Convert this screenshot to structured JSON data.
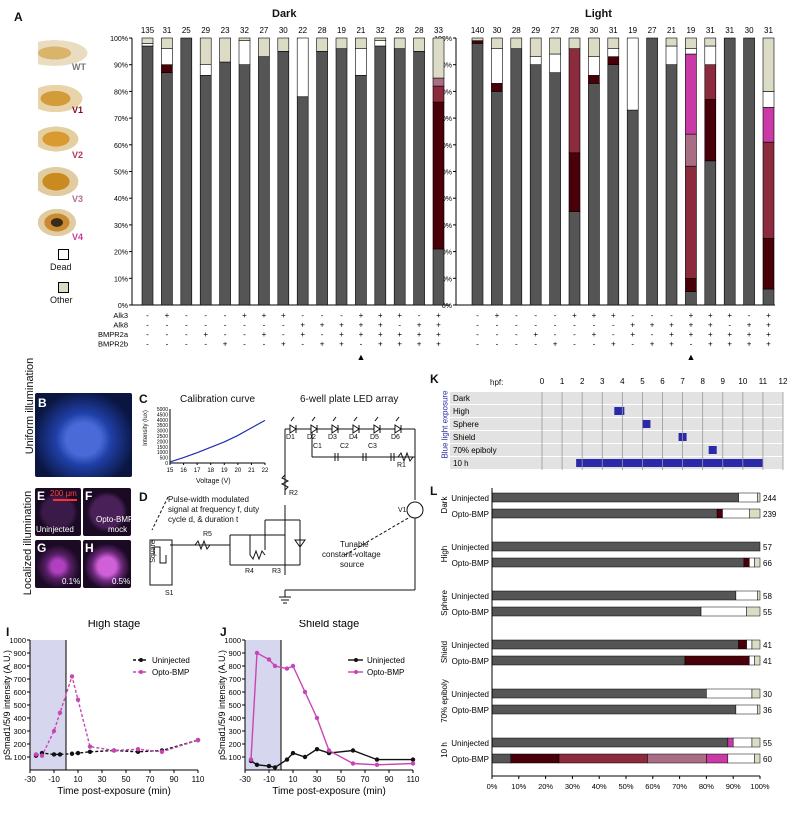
{
  "panelA": {
    "letter": "A",
    "group_titles": [
      "Dark",
      "Light"
    ],
    "y_ticks": [
      "0%",
      "10%",
      "20%",
      "30%",
      "40%",
      "50%",
      "60%",
      "70%",
      "80%",
      "90%",
      "100%"
    ],
    "phenotypes": [
      {
        "name": "WT",
        "color": "#808080"
      },
      {
        "name": "V1",
        "color": "#7a1020"
      },
      {
        "name": "V2",
        "color": "#b03a52"
      },
      {
        "name": "V3",
        "color": "#b0708a"
      },
      {
        "name": "V4",
        "color": "#cc3aa0"
      }
    ],
    "dead_label": "Dead",
    "other_label": "Other",
    "row_labels": [
      "Alk3",
      "Alk8",
      "BMPR2a",
      "BMPR2b"
    ],
    "dark": {
      "n": [
        "135",
        "31",
        "25",
        "29",
        "23",
        "32",
        "27",
        "30",
        "22",
        "28",
        "19",
        "21",
        "32",
        "28",
        "28",
        "33"
      ],
      "genotype": [
        [
          "-",
          "+",
          "-",
          "-",
          "-",
          "+",
          "+",
          "+",
          "-",
          "-",
          "-",
          "+",
          "+",
          "+",
          "-",
          "+"
        ],
        [
          "-",
          "-",
          "-",
          "-",
          "-",
          "-",
          "-",
          "-",
          "+",
          "+",
          "+",
          "+",
          "+",
          "-",
          "+",
          "+"
        ],
        [
          "-",
          "-",
          "-",
          "+",
          "-",
          "-",
          "+",
          "-",
          "+",
          "-",
          "+",
          "+",
          "+",
          "+",
          "+",
          "+"
        ],
        [
          "-",
          "-",
          "-",
          "-",
          "+",
          "-",
          "-",
          "+",
          "-",
          "+",
          "+",
          "-",
          "+",
          "+",
          "+",
          "+"
        ]
      ]
    },
    "light": {
      "n": [
        "140",
        "30",
        "28",
        "29",
        "27",
        "28",
        "30",
        "31",
        "19",
        "27",
        "21",
        "19",
        "31",
        "31",
        "30",
        "31"
      ],
      "genotype": [
        [
          "-",
          "+",
          "-",
          "-",
          "-",
          "+",
          "+",
          "+",
          "-",
          "-",
          "-",
          "+",
          "+",
          "+",
          "-",
          "+"
        ],
        [
          "-",
          "-",
          "-",
          "-",
          "-",
          "-",
          "-",
          "-",
          "+",
          "+",
          "+",
          "+",
          "+",
          "-",
          "+",
          "+"
        ],
        [
          "-",
          "-",
          "-",
          "+",
          "-",
          "-",
          "+",
          "-",
          "+",
          "-",
          "+",
          "+",
          "+",
          "+",
          "+",
          "+"
        ],
        [
          "-",
          "-",
          "-",
          "-",
          "+",
          "-",
          "-",
          "+",
          "-",
          "+",
          "+",
          "-",
          "+",
          "+",
          "+",
          "+"
        ]
      ]
    },
    "arrow": "▲"
  },
  "chart_data": [
    {
      "type": "bar",
      "stacked": true,
      "title": "Dark",
      "ylim": [
        0,
        100
      ],
      "categories": [
        "1",
        "2",
        "3",
        "4",
        "5",
        "6",
        "7",
        "8",
        "9",
        "10",
        "11",
        "12",
        "13",
        "14",
        "15",
        "16"
      ],
      "series": [
        {
          "name": "WT",
          "values": [
            97,
            87,
            100,
            86,
            91,
            90,
            93,
            95,
            78,
            95,
            96,
            86,
            97,
            96,
            95,
            21
          ]
        },
        {
          "name": "V1",
          "values": [
            0,
            3,
            0,
            0,
            0,
            0,
            0,
            0,
            0,
            0,
            0,
            0,
            0,
            0,
            0,
            55
          ]
        },
        {
          "name": "V2",
          "values": [
            0,
            0,
            0,
            0,
            0,
            0,
            0,
            0,
            0,
            0,
            0,
            0,
            0,
            0,
            0,
            6
          ]
        },
        {
          "name": "V3",
          "values": [
            0,
            0,
            0,
            0,
            0,
            0,
            0,
            0,
            0,
            0,
            0,
            0,
            0,
            0,
            0,
            3
          ]
        },
        {
          "name": "V4",
          "values": [
            0,
            0,
            0,
            0,
            0,
            0,
            0,
            0,
            0,
            0,
            0,
            0,
            0,
            0,
            0,
            0
          ]
        },
        {
          "name": "Dead",
          "values": [
            1,
            6,
            0,
            4,
            0,
            9,
            0,
            0,
            22,
            0,
            0,
            10,
            2,
            0,
            0,
            0
          ]
        },
        {
          "name": "Other",
          "values": [
            2,
            4,
            0,
            10,
            9,
            1,
            7,
            5,
            0,
            5,
            4,
            4,
            1,
            4,
            5,
            15
          ]
        }
      ]
    },
    {
      "type": "bar",
      "stacked": true,
      "title": "Light",
      "ylim": [
        0,
        100
      ],
      "categories": [
        "1",
        "2",
        "3",
        "4",
        "5",
        "6",
        "7",
        "8",
        "9",
        "10",
        "11",
        "12",
        "13",
        "14",
        "15",
        "16"
      ],
      "series": [
        {
          "name": "WT",
          "values": [
            98,
            80,
            96,
            90,
            87,
            35,
            83,
            90,
            73,
            100,
            90,
            5,
            54,
            100,
            100,
            6
          ]
        },
        {
          "name": "V1",
          "values": [
            1,
            3,
            0,
            0,
            0,
            22,
            3,
            3,
            0,
            0,
            0,
            5,
            23,
            0,
            0,
            19
          ]
        },
        {
          "name": "V2",
          "values": [
            0,
            0,
            0,
            0,
            0,
            39,
            0,
            0,
            0,
            0,
            0,
            42,
            13,
            0,
            0,
            36
          ]
        },
        {
          "name": "V3",
          "values": [
            0,
            0,
            0,
            0,
            0,
            0,
            0,
            0,
            0,
            0,
            0,
            12,
            0,
            0,
            0,
            0
          ]
        },
        {
          "name": "V4",
          "values": [
            0,
            0,
            0,
            0,
            0,
            0,
            0,
            0,
            0,
            0,
            0,
            30,
            0,
            0,
            0,
            13
          ]
        },
        {
          "name": "Dead",
          "values": [
            0,
            13,
            0,
            3,
            7,
            0,
            7,
            3,
            27,
            0,
            7,
            2,
            7,
            0,
            0,
            6
          ]
        },
        {
          "name": "Other",
          "values": [
            1,
            4,
            4,
            7,
            6,
            4,
            7,
            4,
            0,
            0,
            3,
            4,
            3,
            0,
            0,
            20
          ]
        }
      ]
    },
    {
      "type": "line",
      "title": "High stage",
      "xlabel": "Time post-exposure (min)",
      "ylabel": "pSmad1/5/9 intensity (A.U.)",
      "xlim": [
        -30,
        110
      ],
      "ylim": [
        0,
        1000
      ],
      "x_ticks": [
        "-30",
        "-10",
        "10",
        "30",
        "50",
        "70",
        "90",
        "110"
      ],
      "y_ticks": [
        "100",
        "200",
        "300",
        "400",
        "500",
        "600",
        "700",
        "800",
        "900",
        "1000"
      ],
      "series": [
        {
          "name": "Uninjected",
          "x": [
            -25,
            -20,
            -10,
            -5,
            5,
            10,
            20,
            40,
            60,
            80,
            110
          ],
          "y": [
            110,
            130,
            120,
            120,
            125,
            130,
            140,
            150,
            140,
            150,
            230
          ]
        },
        {
          "name": "Opto-BMP",
          "x": [
            -25,
            -20,
            -10,
            -5,
            5,
            10,
            20,
            40,
            60,
            80,
            110
          ],
          "y": [
            120,
            110,
            300,
            440,
            720,
            540,
            180,
            150,
            160,
            140,
            230
          ]
        }
      ]
    },
    {
      "type": "line",
      "title": "Shield stage",
      "xlabel": "Time post-exposure (min)",
      "ylabel": "pSmad1/5/9 intensity (A.U.)",
      "xlim": [
        -30,
        110
      ],
      "ylim": [
        0,
        1000
      ],
      "x_ticks": [
        "-30",
        "-10",
        "10",
        "30",
        "50",
        "70",
        "90",
        "110"
      ],
      "y_ticks": [
        "100",
        "200",
        "300",
        "400",
        "500",
        "600",
        "700",
        "800",
        "900",
        "1000"
      ],
      "series": [
        {
          "name": "Uninjected",
          "x": [
            -25,
            -20,
            -10,
            -5,
            5,
            10,
            20,
            30,
            40,
            60,
            80,
            110
          ],
          "y": [
            70,
            40,
            30,
            20,
            80,
            130,
            100,
            160,
            130,
            150,
            80,
            80
          ]
        },
        {
          "name": "Opto-BMP",
          "x": [
            -25,
            -20,
            -10,
            -5,
            5,
            10,
            20,
            30,
            40,
            60,
            80,
            110
          ],
          "y": [
            80,
            900,
            850,
            800,
            780,
            800,
            600,
            400,
            150,
            50,
            40,
            50
          ]
        }
      ]
    },
    {
      "type": "bar",
      "orientation": "horizontal",
      "stacked": true,
      "xlim": [
        0,
        100
      ],
      "x_ticks": [
        "0%",
        "10%",
        "20%",
        "30%",
        "40%",
        "50%",
        "60%",
        "70%",
        "80%",
        "90%",
        "100%"
      ],
      "groups": [
        "Dark",
        "High",
        "Sphere",
        "Shield",
        "70% epiboly",
        "10 h"
      ],
      "rows": [
        {
          "group": "Dark",
          "label": "Uninjected",
          "n": "244",
          "segments": [
            92,
            0,
            0,
            0,
            0,
            7,
            1
          ]
        },
        {
          "group": "Dark",
          "label": "Opto-BMP",
          "n": "239",
          "segments": [
            84,
            2,
            0,
            0,
            0,
            10,
            4
          ]
        },
        {
          "group": "High",
          "label": "Uninjected",
          "n": "57",
          "segments": [
            100,
            0,
            0,
            0,
            0,
            0,
            0
          ]
        },
        {
          "group": "High",
          "label": "Opto-BMP",
          "n": "66",
          "segments": [
            94,
            2,
            0,
            0,
            0,
            2,
            2
          ]
        },
        {
          "group": "Sphere",
          "label": "Uninjected",
          "n": "58",
          "segments": [
            91,
            0,
            0,
            0,
            0,
            8,
            1
          ]
        },
        {
          "group": "Sphere",
          "label": "Opto-BMP",
          "n": "55",
          "segments": [
            78,
            0,
            0,
            0,
            0,
            17,
            5
          ]
        },
        {
          "group": "Shield",
          "label": "Uninjected",
          "n": "41",
          "segments": [
            92,
            3,
            0,
            0,
            0,
            2,
            3
          ]
        },
        {
          "group": "Shield",
          "label": "Opto-BMP",
          "n": "41",
          "segments": [
            72,
            24,
            0,
            0,
            0,
            2,
            2
          ]
        },
        {
          "group": "70% epiboly",
          "label": "Uninjected",
          "n": "30",
          "segments": [
            80,
            0,
            0,
            0,
            0,
            17,
            3
          ]
        },
        {
          "group": "70% epiboly",
          "label": "Opto-BMP",
          "n": "36",
          "segments": [
            91,
            0,
            0,
            0,
            0,
            8,
            1
          ]
        },
        {
          "group": "10 h",
          "label": "Uninjected",
          "n": "55",
          "segments": [
            88,
            0,
            0,
            0,
            2,
            7,
            3
          ]
        },
        {
          "group": "10 h",
          "label": "Opto-BMP",
          "n": "60",
          "segments": [
            7,
            18,
            33,
            22,
            8,
            10,
            2
          ]
        }
      ],
      "segment_colors": [
        "#555555",
        "#4a0008",
        "#8c2a3e",
        "#a96e84",
        "#c93aa7",
        "#ffffff",
        "#dcdcc6"
      ]
    }
  ],
  "panelB": {
    "letter": "B"
  },
  "panelC": {
    "letter": "C",
    "title": "Calibration curve",
    "circuit_title": "6-well plate LED array",
    "ylabel": "Intensity (lux)",
    "xlabel": "Voltage (V)",
    "x_ticks": [
      "15",
      "16",
      "17",
      "18",
      "19",
      "20",
      "21",
      "22"
    ],
    "y_ticks": [
      "0",
      "500",
      "1000",
      "1500",
      "2000",
      "2500",
      "3000",
      "3500",
      "4000",
      "4500",
      "5000"
    ],
    "curve_x": [
      15,
      16,
      17,
      18,
      19,
      20,
      21,
      22
    ],
    "curve_y": [
      100,
      500,
      950,
      1450,
      1950,
      2550,
      3250,
      3950
    ]
  },
  "panelD": {
    "letter": "D",
    "note1": "Pulse-width modulated",
    "note2": "signal at frequency f, duty",
    "note3": "cycle d, & duration t",
    "note4": "Tunable",
    "note5": "constant-voltage",
    "note6": "source",
    "square_label": "Square",
    "parts": {
      "s1": "S1",
      "r5": "R5",
      "r4": "R4",
      "r3": "R3",
      "r2": "R2",
      "r1": "R1",
      "v1": "V1",
      "c1": "C1",
      "c2": "C2",
      "c3": "C3",
      "d1": "D1",
      "d2": "D2",
      "d3": "D3",
      "d4": "D4",
      "d5": "D5",
      "d6": "D6"
    }
  },
  "sideLabels": {
    "uniform": "Uniform illumination",
    "localized": "Localized illumination"
  },
  "panelE": {
    "letter": "E",
    "caption": "Uninjected",
    "scale": "200 µm"
  },
  "panelF": {
    "letter": "F",
    "caption1": "Opto-BMP",
    "caption2": "mock"
  },
  "panelG": {
    "letter": "G",
    "caption": "0.1%"
  },
  "panelH": {
    "letter": "H",
    "caption": "0.5%"
  },
  "panelI": {
    "letter": "I",
    "legend": [
      "Uninjected",
      "Opto-BMP"
    ]
  },
  "panelJ": {
    "letter": "J",
    "legend": [
      "Uninjected",
      "Opto-BMP"
    ]
  },
  "panelK": {
    "letter": "K",
    "hpf_label": "hpf:",
    "hours": [
      "0",
      "1",
      "2",
      "3",
      "4",
      "5",
      "6",
      "7",
      "8",
      "9",
      "10",
      "11",
      "12"
    ],
    "rows": [
      "Dark",
      "High",
      "Sphere",
      "Shield",
      "70% epiboly",
      "10 h"
    ],
    "vertical_label": "Blue light exposure",
    "exposures": [
      {
        "start": null,
        "end": null
      },
      {
        "start": 3.6,
        "end": 4.1
      },
      {
        "start": 5.0,
        "end": 5.4
      },
      {
        "start": 6.8,
        "end": 7.2
      },
      {
        "start": 8.3,
        "end": 8.7
      },
      {
        "start": 1.7,
        "end": 11.0
      }
    ],
    "bar_color": "#2a2aa8"
  },
  "panelL": {
    "letter": "L"
  }
}
